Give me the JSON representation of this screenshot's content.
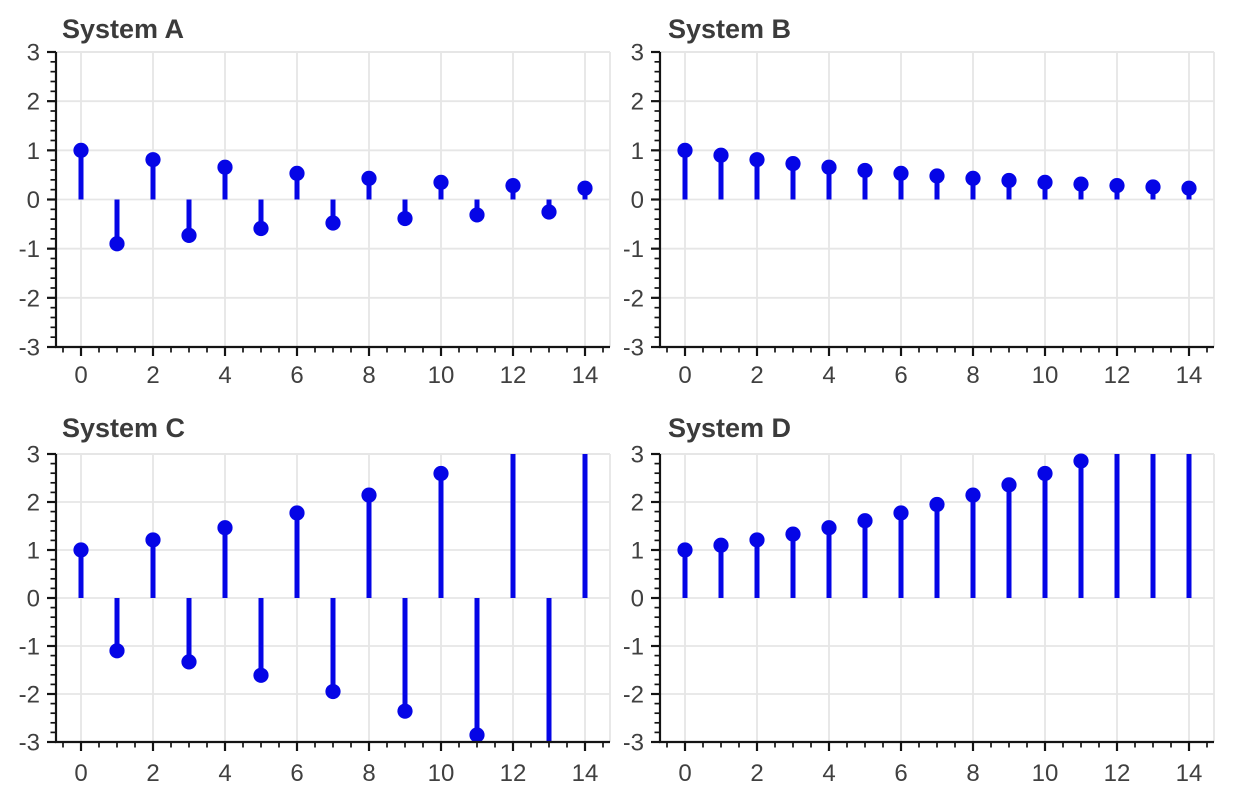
{
  "figure": {
    "background": "#ffffff",
    "rows": 2,
    "cols": 2
  },
  "style": {
    "stem_color": "#0505e6",
    "marker_color": "#0505e6",
    "grid_color": "#e6e6e6",
    "spine_color": "#141414",
    "tick_color": "#141414",
    "tick_label_color": "#404040",
    "title_color": "#3b3b3b",
    "stem_width": 5,
    "marker_radius": 7.6
  },
  "chart_data": [
    {
      "type": "stem",
      "title": "System A",
      "x": [
        0,
        1,
        2,
        3,
        4,
        5,
        6,
        7,
        8,
        9,
        10,
        11,
        12,
        13,
        14
      ],
      "values": [
        1.0,
        -0.9,
        0.81,
        -0.729,
        0.6561,
        -0.5905,
        0.5314,
        -0.4783,
        0.4305,
        -0.3874,
        0.3487,
        -0.3138,
        0.2824,
        -0.2542,
        0.2288
      ],
      "xlim": [
        -0.7,
        14.7
      ],
      "ylim": [
        -3,
        3
      ],
      "xticks": [
        0,
        2,
        4,
        6,
        8,
        10,
        12,
        14
      ],
      "yticks": [
        -3,
        -2,
        -1,
        0,
        1,
        2,
        3
      ],
      "x_minor_step": 0.5,
      "y_minor_step": 0.2,
      "grid": true,
      "clip_markers_outside_ylim": true,
      "legend": "none",
      "xlabel": "",
      "ylabel": ""
    },
    {
      "type": "stem",
      "title": "System B",
      "x": [
        0,
        1,
        2,
        3,
        4,
        5,
        6,
        7,
        8,
        9,
        10,
        11,
        12,
        13,
        14
      ],
      "values": [
        1.0,
        0.9,
        0.81,
        0.729,
        0.6561,
        0.5905,
        0.5314,
        0.4783,
        0.4305,
        0.3874,
        0.3487,
        0.3138,
        0.2824,
        0.2542,
        0.2288
      ],
      "xlim": [
        -0.7,
        14.7
      ],
      "ylim": [
        -3,
        3
      ],
      "xticks": [
        0,
        2,
        4,
        6,
        8,
        10,
        12,
        14
      ],
      "yticks": [
        -3,
        -2,
        -1,
        0,
        1,
        2,
        3
      ],
      "x_minor_step": 0.5,
      "y_minor_step": 0.2,
      "grid": true,
      "clip_markers_outside_ylim": true,
      "legend": "none",
      "xlabel": "",
      "ylabel": ""
    },
    {
      "type": "stem",
      "title": "System C",
      "x": [
        0,
        1,
        2,
        3,
        4,
        5,
        6,
        7,
        8,
        9,
        10,
        11,
        12,
        13,
        14
      ],
      "values": [
        1.0,
        -1.1,
        1.21,
        -1.331,
        1.4641,
        -1.6105,
        1.7716,
        -1.9487,
        2.1436,
        -2.3579,
        2.5937,
        -2.8531,
        3.1384,
        -3.4523,
        3.7975
      ],
      "xlim": [
        -0.7,
        14.7
      ],
      "ylim": [
        -3,
        3
      ],
      "xticks": [
        0,
        2,
        4,
        6,
        8,
        10,
        12,
        14
      ],
      "yticks": [
        -3,
        -2,
        -1,
        0,
        1,
        2,
        3
      ],
      "x_minor_step": 0.5,
      "y_minor_step": 0.2,
      "grid": true,
      "clip_markers_outside_ylim": true,
      "legend": "none",
      "xlabel": "",
      "ylabel": ""
    },
    {
      "type": "stem",
      "title": "System D",
      "x": [
        0,
        1,
        2,
        3,
        4,
        5,
        6,
        7,
        8,
        9,
        10,
        11,
        12,
        13,
        14
      ],
      "values": [
        1.0,
        1.1,
        1.21,
        1.331,
        1.4641,
        1.6105,
        1.7716,
        1.9487,
        2.1436,
        2.3579,
        2.5937,
        2.8531,
        3.1384,
        3.4523,
        3.7975
      ],
      "xlim": [
        -0.7,
        14.7
      ],
      "ylim": [
        -3,
        3
      ],
      "xticks": [
        0,
        2,
        4,
        6,
        8,
        10,
        12,
        14
      ],
      "yticks": [
        -3,
        -2,
        -1,
        0,
        1,
        2,
        3
      ],
      "x_minor_step": 0.5,
      "y_minor_step": 0.2,
      "grid": true,
      "clip_markers_outside_ylim": true,
      "legend": "none",
      "xlabel": "",
      "ylabel": ""
    }
  ]
}
